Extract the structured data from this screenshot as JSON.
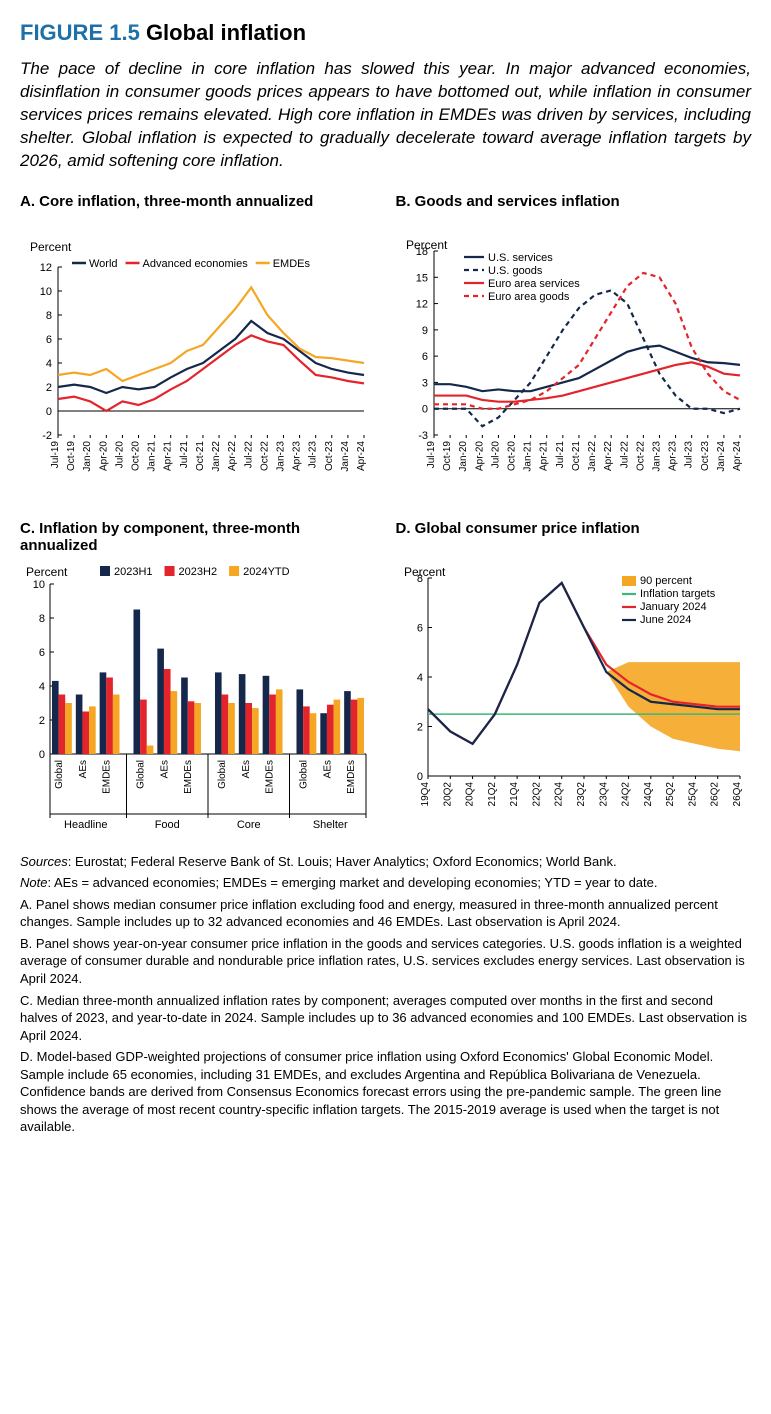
{
  "figure_number": "FIGURE 1.5",
  "figure_title": "Global inflation",
  "caption": "The pace of decline in core inflation has slowed this year. In major advanced economies, disinflation in consumer goods prices appears to have bottomed out, while inflation in consumer services prices remains elevated. High core inflation in EMDEs was driven by services, including shelter. Global inflation is expected to gradually decelerate toward average inflation targets by 2026, amid softening core inflation.",
  "colors": {
    "navy": "#15284b",
    "red": "#e3242b",
    "orange": "#f5a623",
    "green": "#3cb878",
    "black": "#000000",
    "grid": "#000000",
    "band": "#f5a623"
  },
  "panelA": {
    "title": "A. Core inflation, three-month annualized",
    "ylabel": "Percent",
    "ylim": [
      -2,
      12
    ],
    "ytick_step": 2,
    "xlabels": [
      "Jul-19",
      "Oct-19",
      "Jan-20",
      "Apr-20",
      "Jul-20",
      "Oct-20",
      "Jan-21",
      "Apr-21",
      "Jul-21",
      "Oct-21",
      "Jan-22",
      "Apr-22",
      "Jul-22",
      "Oct-22",
      "Jan-23",
      "Apr-23",
      "Jul-23",
      "Oct-23",
      "Jan-24",
      "Apr-24"
    ],
    "legend": [
      "World",
      "Advanced economies",
      "EMDEs"
    ],
    "series": {
      "World": [
        2.0,
        2.2,
        2.0,
        1.5,
        2.0,
        1.8,
        2.0,
        2.8,
        3.5,
        4.0,
        5.0,
        6.0,
        7.5,
        6.5,
        6.0,
        5.0,
        4.0,
        3.5,
        3.2,
        3.0
      ],
      "Advanced economies": [
        1.0,
        1.2,
        0.8,
        0.0,
        0.8,
        0.5,
        1.0,
        1.8,
        2.5,
        3.5,
        4.5,
        5.5,
        6.3,
        5.8,
        5.5,
        4.2,
        3.0,
        2.8,
        2.5,
        2.3
      ],
      "EMDEs": [
        3.0,
        3.2,
        3.0,
        3.5,
        2.5,
        3.0,
        3.5,
        4.0,
        5.0,
        5.5,
        7.0,
        8.5,
        10.3,
        8.0,
        6.5,
        5.2,
        4.5,
        4.4,
        4.2,
        4.0
      ]
    }
  },
  "panelB": {
    "title": "B. Goods and services inflation",
    "ylabel": "Percent",
    "ylim": [
      -3,
      18
    ],
    "ytick_step": 3,
    "xlabels": [
      "Jul-19",
      "Oct-19",
      "Jan-20",
      "Apr-20",
      "Jul-20",
      "Oct-20",
      "Jan-21",
      "Apr-21",
      "Jul-21",
      "Oct-21",
      "Jan-22",
      "Apr-22",
      "Jul-22",
      "Oct-22",
      "Jan-23",
      "Apr-23",
      "Jul-23",
      "Oct-23",
      "Jan-24",
      "Apr-24"
    ],
    "legend": [
      {
        "label": "U.S. services",
        "color": "navy",
        "dash": false
      },
      {
        "label": "U.S. goods",
        "color": "navy",
        "dash": true
      },
      {
        "label": "Euro area services",
        "color": "red",
        "dash": false
      },
      {
        "label": "Euro area goods",
        "color": "red",
        "dash": true
      }
    ],
    "series": {
      "US_services": [
        2.8,
        2.8,
        2.5,
        2.0,
        2.2,
        2.0,
        2.0,
        2.5,
        3.0,
        3.5,
        4.5,
        5.5,
        6.5,
        7.0,
        7.2,
        6.5,
        5.8,
        5.3,
        5.2,
        5.0
      ],
      "US_goods": [
        0.0,
        0.0,
        0.0,
        -2.0,
        -1.0,
        1.0,
        3.0,
        6.0,
        9.0,
        11.5,
        13.0,
        13.5,
        12.0,
        8.0,
        4.0,
        1.5,
        0.0,
        0.0,
        -0.5,
        0.0
      ],
      "EA_services": [
        1.5,
        1.5,
        1.5,
        1.0,
        0.8,
        0.8,
        1.0,
        1.2,
        1.5,
        2.0,
        2.5,
        3.0,
        3.5,
        4.0,
        4.5,
        5.0,
        5.3,
        4.8,
        4.0,
        3.8
      ],
      "EA_goods": [
        0.5,
        0.5,
        0.5,
        0.0,
        0.0,
        0.5,
        1.0,
        2.0,
        3.5,
        5.0,
        8.0,
        11.0,
        14.0,
        15.5,
        15.0,
        12.0,
        7.0,
        4.0,
        2.0,
        1.0
      ]
    }
  },
  "panelC": {
    "title": "C. Inflation by component, three-month annualized",
    "ylabel": "Percent",
    "ylim": [
      0,
      10
    ],
    "ytick_step": 2,
    "legend": [
      {
        "label": "2023H1",
        "color": "navy"
      },
      {
        "label": "2023H2",
        "color": "red"
      },
      {
        "label": "2024YTD",
        "color": "orange"
      }
    ],
    "groups": [
      "Headline",
      "Food",
      "Core",
      "Shelter"
    ],
    "subs": [
      "Global",
      "AEs",
      "EMDEs"
    ],
    "data": {
      "Headline": {
        "Global": [
          4.3,
          3.5,
          3.0
        ],
        "AEs": [
          3.5,
          2.5,
          2.8
        ],
        "EMDEs": [
          4.8,
          4.5,
          3.5
        ]
      },
      "Food": {
        "Global": [
          8.5,
          3.2,
          0.5
        ],
        "AEs": [
          6.2,
          5.0,
          3.7
        ],
        "EMDEs": [
          4.5,
          3.1,
          3.0
        ]
      },
      "Core": {
        "Global": [
          4.8,
          3.5,
          3.0
        ],
        "AEs": [
          4.7,
          3.0,
          2.7
        ],
        "EMDEs": [
          4.6,
          3.5,
          3.8
        ]
      },
      "Shelter": {
        "Global": [
          3.8,
          2.8,
          2.4
        ],
        "AEs": [
          2.4,
          2.9,
          3.2
        ],
        "EMDEs": [
          3.7,
          3.2,
          3.3
        ]
      }
    }
  },
  "panelD": {
    "title": "D. Global consumer price inflation",
    "ylabel": "Percent",
    "ylim": [
      0,
      8
    ],
    "ytick_step": 2,
    "xlabels": [
      "19Q4",
      "20Q2",
      "20Q4",
      "21Q2",
      "21Q4",
      "22Q2",
      "22Q4",
      "23Q2",
      "23Q4",
      "24Q2",
      "24Q4",
      "25Q2",
      "25Q4",
      "26Q2",
      "26Q4"
    ],
    "legend": [
      {
        "label": "90 percent",
        "type": "band",
        "color": "orange"
      },
      {
        "label": "Inflation targets",
        "type": "line",
        "color": "green"
      },
      {
        "label": "January 2024",
        "type": "line",
        "color": "red"
      },
      {
        "label": "June 2024",
        "type": "line",
        "color": "navy"
      }
    ],
    "target": 2.5,
    "june2024": [
      2.7,
      1.8,
      1.3,
      2.5,
      4.5,
      7.0,
      7.8,
      6.0,
      4.2,
      3.5,
      3.0,
      2.9,
      2.8,
      2.7,
      2.7
    ],
    "january2024": [
      2.7,
      1.8,
      1.3,
      2.5,
      4.5,
      7.0,
      7.8,
      6.0,
      4.5,
      3.8,
      3.3,
      3.0,
      2.9,
      2.8,
      2.8
    ],
    "band_start_index": 8,
    "band_lower": [
      4.2,
      2.8,
      2.0,
      1.5,
      1.3,
      1.1,
      1.0
    ],
    "band_upper": [
      4.2,
      4.6,
      4.6,
      4.6,
      4.6,
      4.6,
      4.6
    ]
  },
  "notes": {
    "sources_label": "Sources",
    "sources": "Eurostat; Federal Reserve Bank of St. Louis; Haver Analytics; Oxford Economics; World Bank.",
    "note_label": "Note",
    "note": "AEs = advanced economies; EMDEs = emerging market and developing economies; YTD = year to date.",
    "A": "A. Panel shows median consumer price inflation excluding food and energy, measured in three-month annualized percent changes. Sample includes up to 32 advanced economies and 46 EMDEs. Last observation is April 2024.",
    "B": "B. Panel shows year-on-year consumer price inflation in the goods and services categories. U.S. goods inflation is a weighted average of consumer durable and nondurable price inflation rates, U.S. services excludes energy services. Last observation is April 2024.",
    "C": "C. Median three-month annualized inflation rates by component; averages computed over months in the first and second halves of 2023, and year-to-date in 2024. Sample includes up to 36 advanced economies and 100 EMDEs. Last observation is April 2024.",
    "D": "D. Model-based GDP-weighted projections of consumer price inflation using Oxford Economics' Global Economic Model. Sample include 65 economies, including 31 EMDEs, and excludes Argentina and República Bolivariana de Venezuela. Confidence bands are derived from Consensus Economics forecast errors using the pre-pandemic sample. The green line shows the average of most recent country-specific inflation targets. The 2015-2019 average is used when the target is not available."
  }
}
